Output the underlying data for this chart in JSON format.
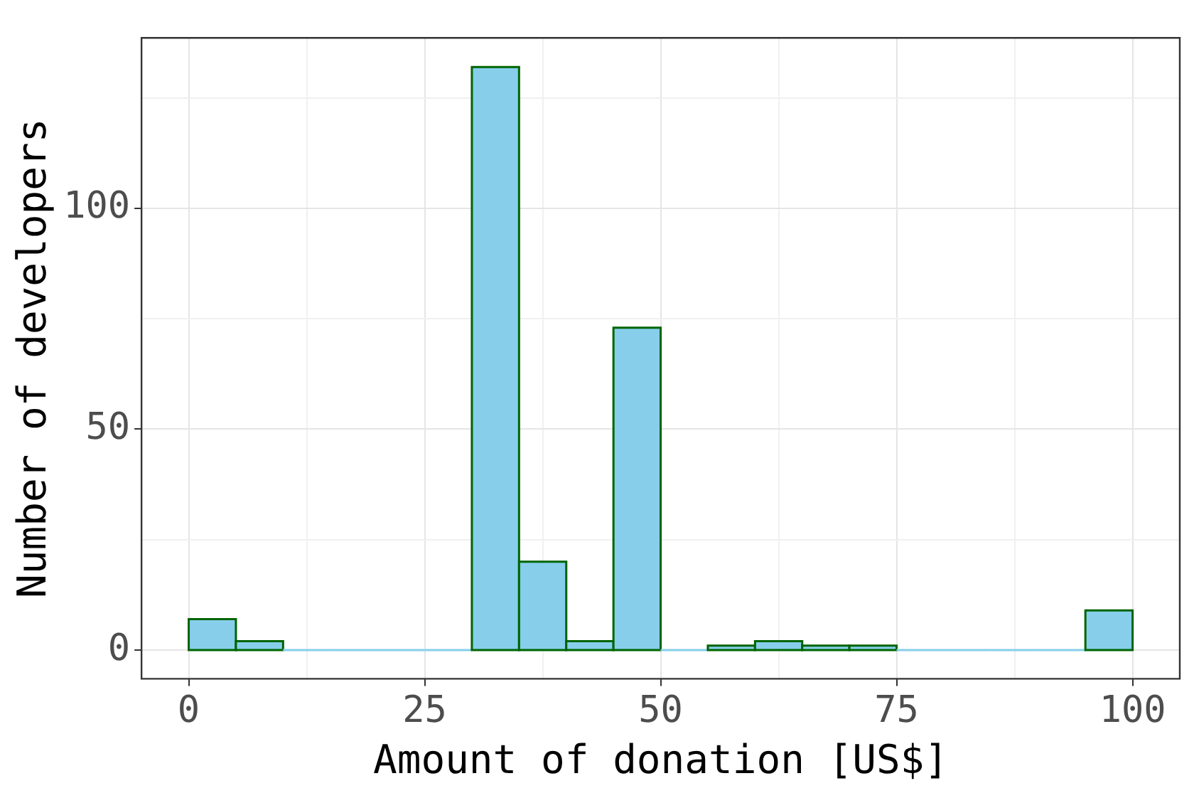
{
  "chart_data": {
    "type": "histogram",
    "xlabel": "Amount of donation [US$]",
    "ylabel": "Number of developers",
    "bins": [
      0,
      5,
      10,
      15,
      20,
      25,
      30,
      35,
      40,
      45,
      50,
      55,
      60,
      65,
      70,
      75,
      80,
      85,
      90,
      95,
      100
    ],
    "values": [
      7,
      2,
      0,
      0,
      0,
      0,
      132,
      20,
      2,
      73,
      0,
      1,
      2,
      1,
      1,
      0,
      0,
      0,
      0,
      9
    ],
    "color": "#87ceeb",
    "xlim": [
      -5,
      105
    ],
    "ylim": [
      -6.5,
      138.6
    ],
    "xticks": [
      0,
      {
        "value": 12.5,
        "label": null
      },
      25,
      {
        "value": 37.5,
        "label": null
      },
      50,
      {
        "value": 62.5,
        "label": null
      },
      75,
      {
        "value": 87.5,
        "label": null
      },
      100
    ],
    "yticks": [
      0,
      {
        "value": 25,
        "label": null
      },
      50,
      {
        "value": 75,
        "label": null
      },
      100,
      {
        "value": 125,
        "label": null
      }
    ],
    "grid": true,
    "legend": false
  }
}
